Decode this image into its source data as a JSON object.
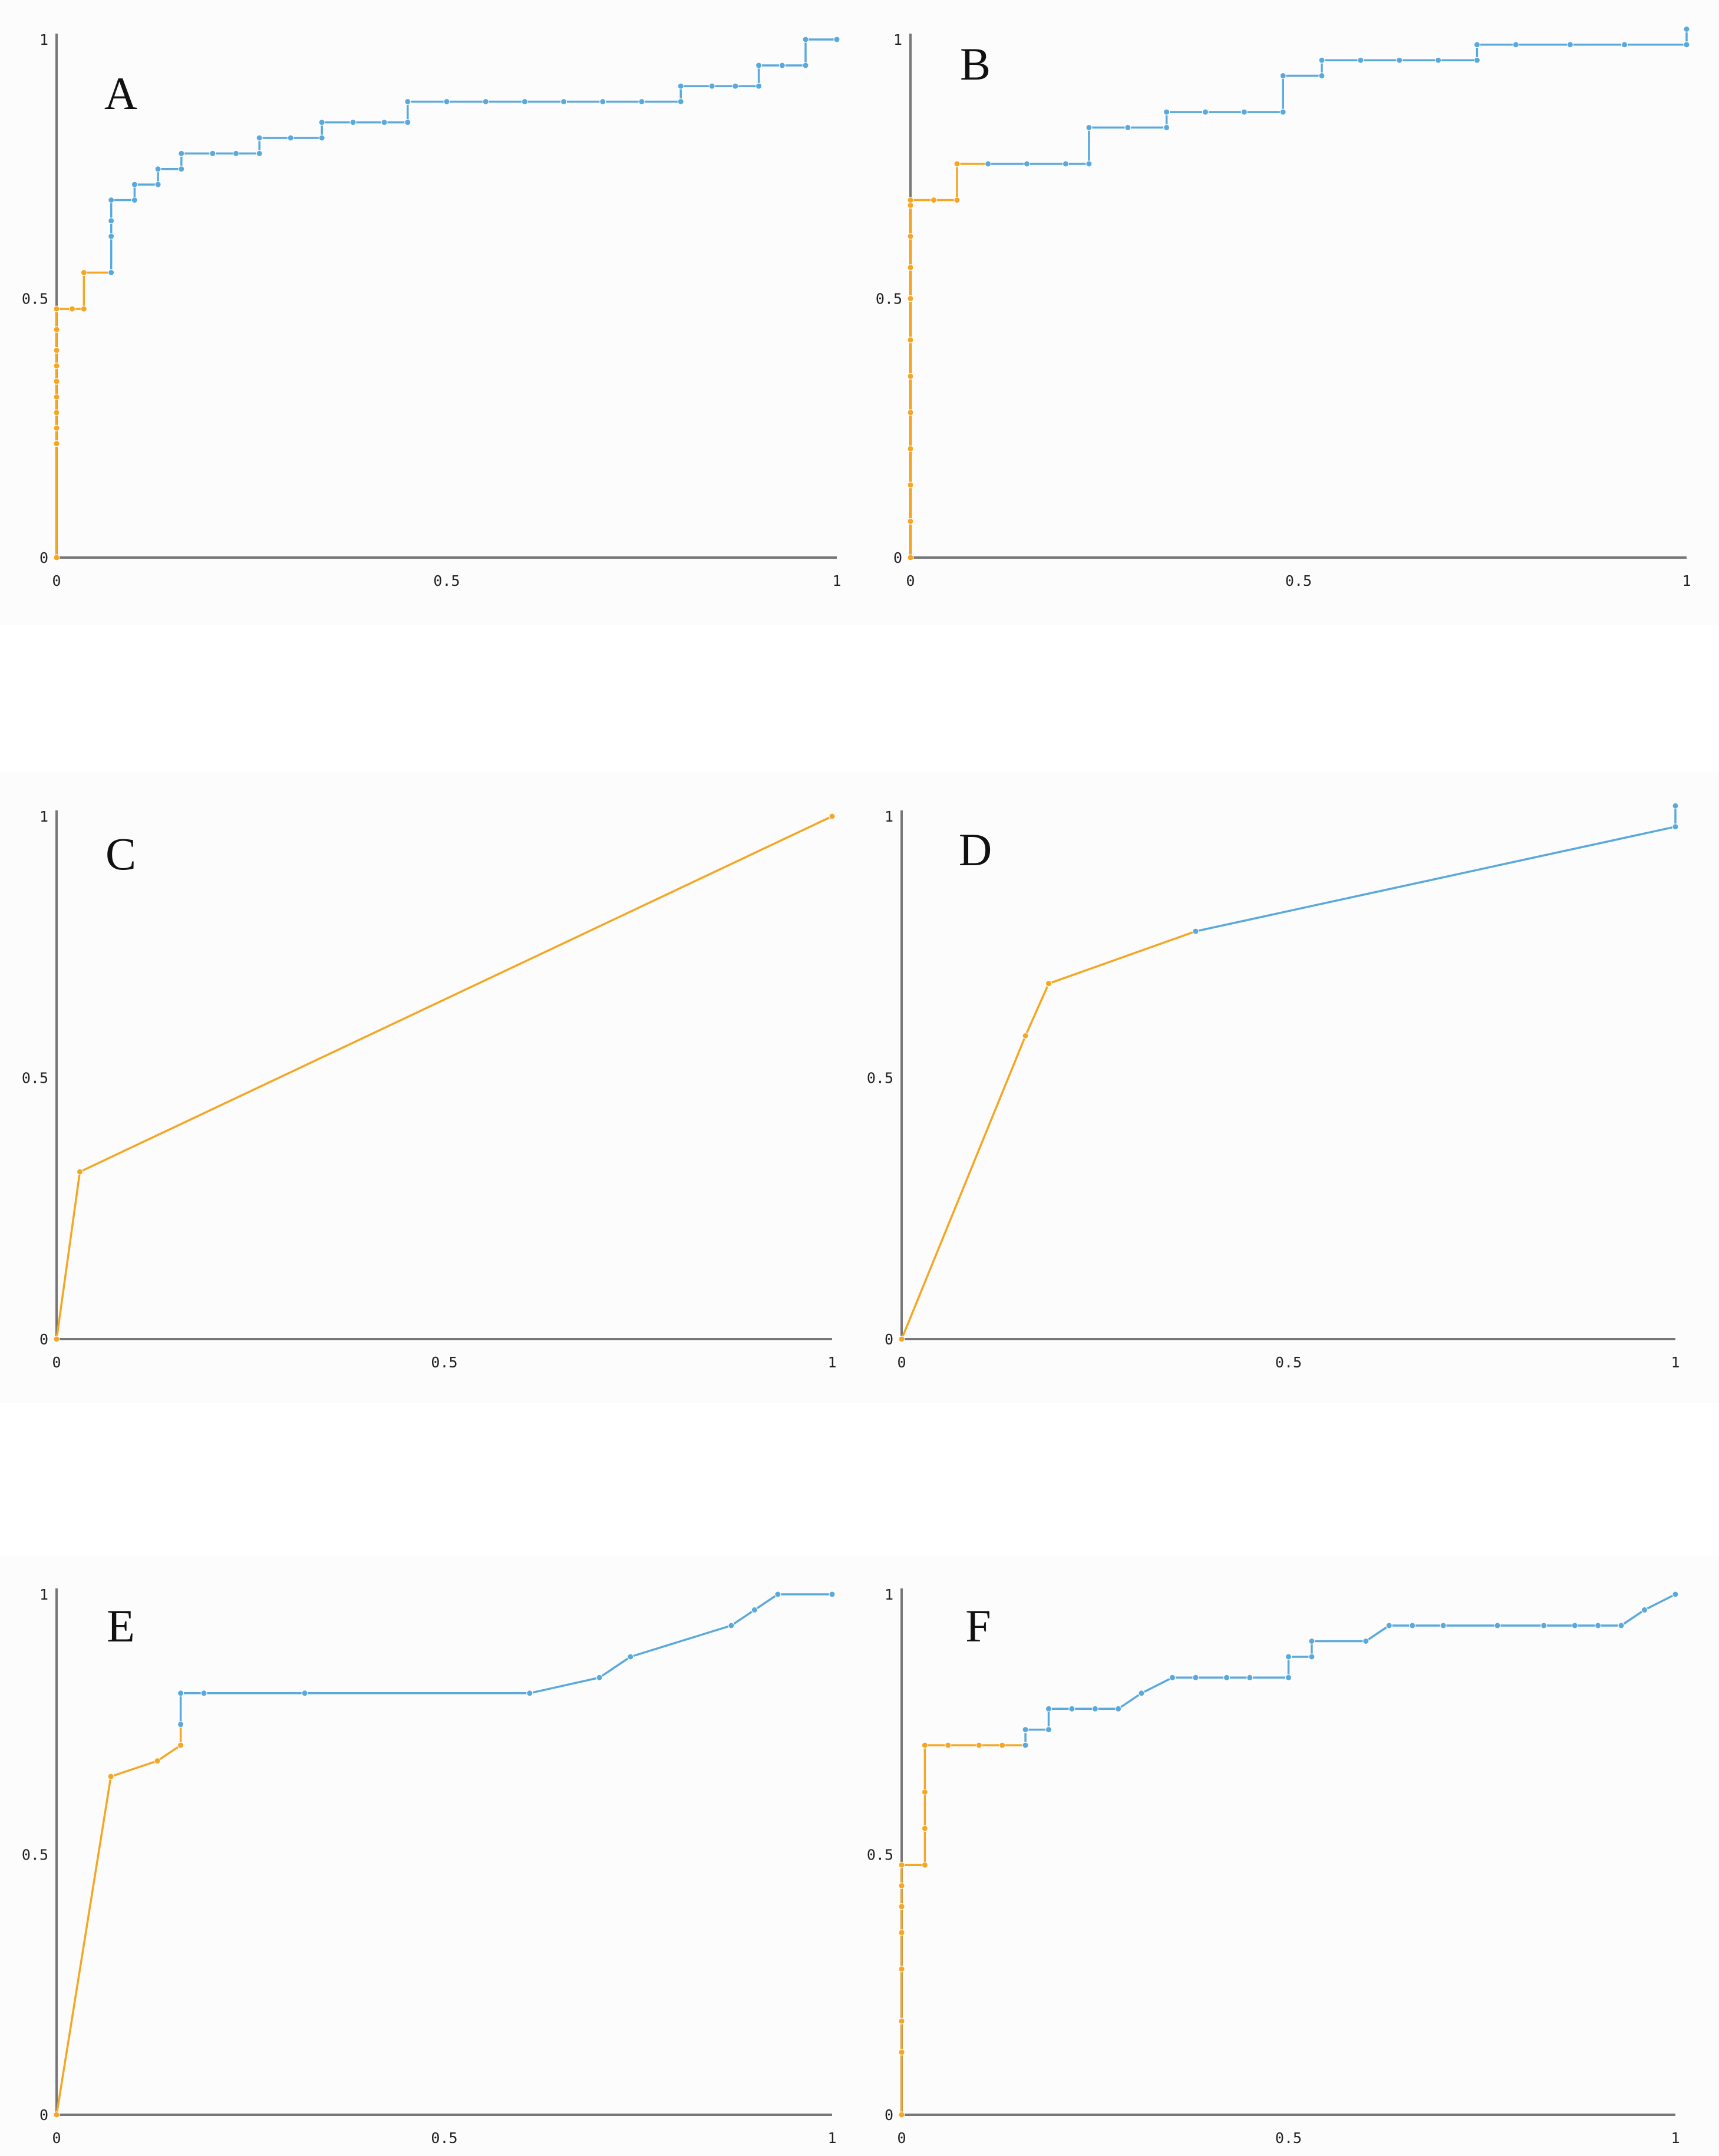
{
  "colors": {
    "orange": "#f5a623",
    "blue": "#5aa9dd",
    "axis": "#777777",
    "text": "#222222"
  },
  "chart_data": [
    {
      "type": "line",
      "label": "A",
      "xlim": [
        0,
        1
      ],
      "ylim": [
        0,
        1
      ],
      "x_ticks": [
        "0",
        "0.5",
        "1"
      ],
      "y_ticks": [
        "0",
        "0.5",
        "1"
      ],
      "series": [
        {
          "color": "orange",
          "x": [
            0,
            0,
            0,
            0,
            0,
            0,
            0,
            0,
            0,
            0,
            0.02,
            0.035,
            0.035,
            0.07
          ],
          "y": [
            0,
            0.22,
            0.25,
            0.28,
            0.31,
            0.34,
            0.37,
            0.4,
            0.44,
            0.48,
            0.48,
            0.48,
            0.55,
            0.55
          ]
        },
        {
          "color": "blue",
          "x": [
            0.07,
            0.07,
            0.07,
            0.07,
            0.1,
            0.1,
            0.13,
            0.13,
            0.16,
            0.16,
            0.2,
            0.23,
            0.26,
            0.26,
            0.3,
            0.34,
            0.34,
            0.38,
            0.42,
            0.45,
            0.45,
            0.5,
            0.55,
            0.6,
            0.65,
            0.7,
            0.75,
            0.8,
            0.8,
            0.84,
            0.87,
            0.9,
            0.9,
            0.93,
            0.96,
            0.96,
            1
          ],
          "y": [
            0.55,
            0.62,
            0.65,
            0.69,
            0.69,
            0.72,
            0.72,
            0.75,
            0.75,
            0.78,
            0.78,
            0.78,
            0.78,
            0.81,
            0.81,
            0.81,
            0.84,
            0.84,
            0.84,
            0.84,
            0.88,
            0.88,
            0.88,
            0.88,
            0.88,
            0.88,
            0.88,
            0.88,
            0.91,
            0.91,
            0.91,
            0.91,
            0.95,
            0.95,
            0.95,
            1,
            1
          ]
        }
      ]
    },
    {
      "type": "line",
      "label": "B",
      "xlim": [
        0,
        1
      ],
      "ylim": [
        0,
        1
      ],
      "x_ticks": [
        "0",
        "0.5",
        "1"
      ],
      "y_ticks": [
        "0",
        "0.5",
        "1"
      ],
      "series": [
        {
          "color": "orange",
          "x": [
            0,
            0,
            0,
            0,
            0,
            0,
            0,
            0,
            0,
            0,
            0,
            0,
            0.03,
            0.06,
            0.06,
            0.1
          ],
          "y": [
            0,
            0.07,
            0.14,
            0.21,
            0.28,
            0.35,
            0.42,
            0.5,
            0.56,
            0.62,
            0.68,
            0.69,
            0.69,
            0.69,
            0.76,
            0.76
          ]
        },
        {
          "color": "blue",
          "x": [
            0.1,
            0.15,
            0.2,
            0.23,
            0.23,
            0.28,
            0.33,
            0.33,
            0.38,
            0.43,
            0.48,
            0.48,
            0.53,
            0.53,
            0.58,
            0.63,
            0.68,
            0.73,
            0.73,
            0.78,
            0.85,
            0.92,
            1,
            1
          ],
          "y": [
            0.76,
            0.76,
            0.76,
            0.76,
            0.83,
            0.83,
            0.83,
            0.86,
            0.86,
            0.86,
            0.86,
            0.93,
            0.93,
            0.96,
            0.96,
            0.96,
            0.96,
            0.96,
            0.99,
            0.99,
            0.99,
            0.99,
            0.99,
            1.02
          ]
        }
      ]
    },
    {
      "type": "line",
      "label": "C",
      "xlim": [
        0,
        1
      ],
      "ylim": [
        0,
        1
      ],
      "x_ticks": [
        "0",
        "0.5",
        "1"
      ],
      "y_ticks": [
        "0",
        "0.5",
        "1"
      ],
      "series": [
        {
          "color": "orange",
          "x": [
            0,
            0.03,
            1
          ],
          "y": [
            0,
            0.32,
            1
          ]
        }
      ]
    },
    {
      "type": "line",
      "label": "D",
      "xlim": [
        0,
        1
      ],
      "ylim": [
        0,
        1
      ],
      "x_ticks": [
        "0",
        "0.5",
        "1"
      ],
      "y_ticks": [
        "0",
        "0.5",
        "1"
      ],
      "series": [
        {
          "color": "orange",
          "x": [
            0,
            0.16,
            0.19,
            0.38
          ],
          "y": [
            0,
            0.58,
            0.68,
            0.78
          ]
        },
        {
          "color": "blue",
          "x": [
            0.38,
            1,
            1
          ],
          "y": [
            0.78,
            0.98,
            1.02
          ]
        }
      ]
    },
    {
      "type": "line",
      "label": "E",
      "xlim": [
        0,
        1
      ],
      "ylim": [
        0,
        1
      ],
      "x_ticks": [
        "0",
        "0.5",
        "1"
      ],
      "y_ticks": [
        "0",
        "0.5",
        "1"
      ],
      "series": [
        {
          "color": "orange",
          "x": [
            0,
            0.07,
            0.13,
            0.16,
            0.16
          ],
          "y": [
            0,
            0.65,
            0.68,
            0.71,
            0.75
          ]
        },
        {
          "color": "blue",
          "x": [
            0.16,
            0.16,
            0.19,
            0.32,
            0.61,
            0.7,
            0.74,
            0.87,
            0.9,
            0.93,
            1
          ],
          "y": [
            0.75,
            0.81,
            0.81,
            0.81,
            0.81,
            0.84,
            0.88,
            0.94,
            0.97,
            1,
            1
          ]
        }
      ]
    },
    {
      "type": "line",
      "label": "F",
      "xlim": [
        0,
        1
      ],
      "ylim": [
        0,
        1
      ],
      "x_ticks": [
        "0",
        "0.5",
        "1"
      ],
      "y_ticks": [
        "0",
        "0.5",
        "1"
      ],
      "series": [
        {
          "color": "orange",
          "x": [
            0,
            0,
            0,
            0,
            0,
            0,
            0,
            0,
            0.03,
            0.03,
            0.03,
            0.03,
            0.06,
            0.1,
            0.13,
            0.16
          ],
          "y": [
            0,
            0.12,
            0.18,
            0.28,
            0.35,
            0.4,
            0.44,
            0.48,
            0.48,
            0.55,
            0.62,
            0.71,
            0.71,
            0.71,
            0.71,
            0.71
          ]
        },
        {
          "color": "blue",
          "x": [
            0.16,
            0.16,
            0.19,
            0.19,
            0.22,
            0.25,
            0.28,
            0.31,
            0.35,
            0.38,
            0.42,
            0.45,
            0.5,
            0.5,
            0.53,
            0.53,
            0.6,
            0.63,
            0.66,
            0.7,
            0.77,
            0.83,
            0.87,
            0.9,
            0.93,
            0.96,
            1
          ],
          "y": [
            0.71,
            0.74,
            0.74,
            0.78,
            0.78,
            0.78,
            0.78,
            0.81,
            0.84,
            0.84,
            0.84,
            0.84,
            0.84,
            0.88,
            0.88,
            0.91,
            0.91,
            0.94,
            0.94,
            0.94,
            0.94,
            0.94,
            0.94,
            0.94,
            0.94,
            0.97,
            1
          ]
        }
      ]
    }
  ]
}
